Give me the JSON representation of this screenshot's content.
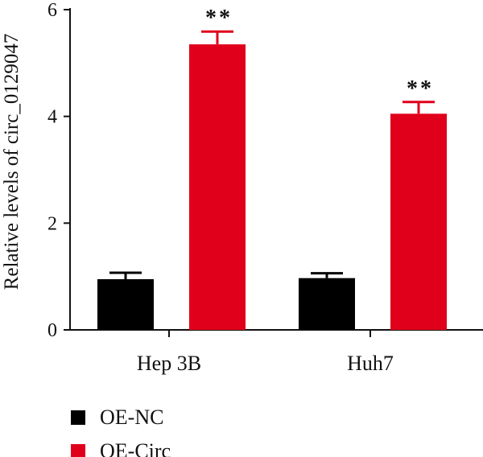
{
  "chart_data": {
    "type": "bar",
    "title": "",
    "xlabel": "",
    "ylabel": "Relative levels of circ_0129047",
    "ylim": [
      0,
      6
    ],
    "yticks": [
      "0",
      "2",
      "4",
      "6"
    ],
    "categories": [
      "Hep 3B",
      "Huh7"
    ],
    "series": [
      {
        "name": "OE-NC",
        "color": "#000000",
        "values": [
          0.95,
          0.97
        ],
        "errors": [
          0.12,
          0.09
        ]
      },
      {
        "name": "OE-Circ",
        "color": "#e0001b",
        "values": [
          5.35,
          4.05
        ],
        "errors": [
          0.24,
          0.22
        ]
      }
    ],
    "annotations": [
      "**",
      "**"
    ],
    "legend": {
      "placement": "bottom-left",
      "entries": [
        "OE-NC",
        "OE-Circ"
      ]
    }
  }
}
